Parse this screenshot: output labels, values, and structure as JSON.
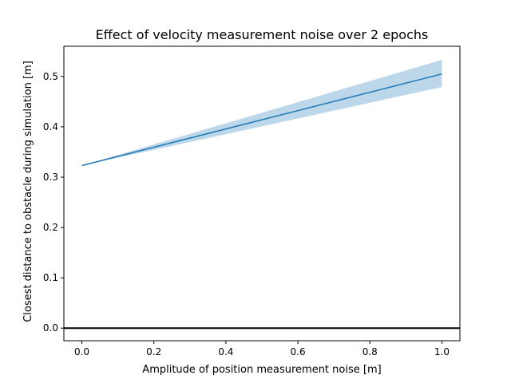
{
  "chart_data": {
    "type": "line",
    "title": "Effect of velocity measurement noise over 2 epochs",
    "xlabel": "Amplitude of position measurement noise [m]",
    "ylabel": "Closest distance to obstacle during simulation [m]",
    "xlim": [
      -0.05,
      1.05
    ],
    "ylim": [
      -0.025,
      0.56
    ],
    "xticks": [
      0.0,
      0.2,
      0.4,
      0.6,
      0.8,
      1.0
    ],
    "xtick_labels": [
      "0.0",
      "0.2",
      "0.4",
      "0.6",
      "0.8",
      "1.0"
    ],
    "yticks": [
      0.0,
      0.1,
      0.2,
      0.3,
      0.4,
      0.5
    ],
    "ytick_labels": [
      "0.0",
      "0.1",
      "0.2",
      "0.3",
      "0.4",
      "0.5"
    ],
    "grid": false,
    "legend": "none",
    "series": [
      {
        "color": "#1f77b4",
        "x": [
          0.0,
          1.0
        ],
        "y": [
          0.323,
          0.505
        ],
        "band_lower": [
          0.323,
          0.479
        ],
        "band_upper": [
          0.323,
          0.533
        ],
        "band_color": "#bcd6ea"
      }
    ],
    "hlines": [
      {
        "y": 0.0,
        "color": "#000000"
      }
    ]
  }
}
